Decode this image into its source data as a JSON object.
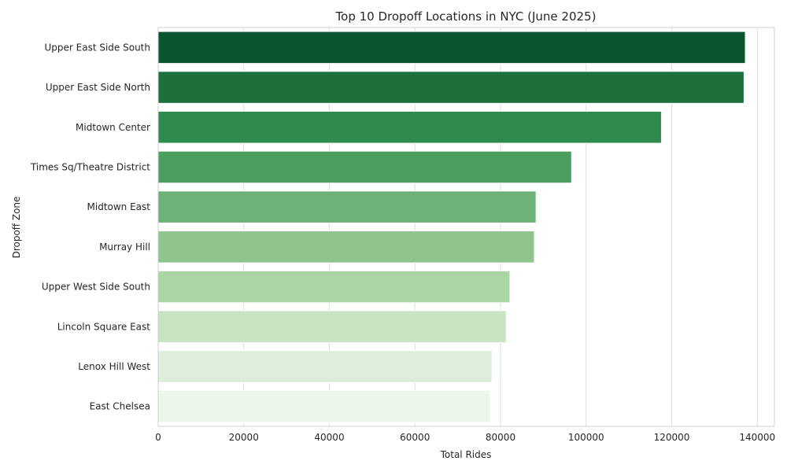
{
  "chart_data": {
    "type": "bar",
    "orientation": "horizontal",
    "title": "Top 10 Dropoff Locations in NYC (June 2025)",
    "xlabel": "Total Rides",
    "ylabel": "Dropoff Zone",
    "xlim": [
      0,
      144000
    ],
    "xticks": [
      0,
      20000,
      40000,
      60000,
      80000,
      100000,
      120000,
      140000
    ],
    "grid": true,
    "categories": [
      "Upper East Side South",
      "Upper East Side North",
      "Midtown Center",
      "Times Sq/Theatre District",
      "Midtown East",
      "Murray Hill",
      "Upper West Side South",
      "Lincoln Square East",
      "Lenox Hill West",
      "East Chelsea"
    ],
    "values": [
      137200,
      136900,
      117600,
      96600,
      88300,
      87900,
      82200,
      81300,
      78000,
      77600
    ],
    "colors": [
      "#0b5430",
      "#1c703b",
      "#2e8a4e",
      "#4a9e5f",
      "#6db176",
      "#8fc58c",
      "#abd5a5",
      "#c7e3c0",
      "#dceeda",
      "#ecf6ea"
    ]
  }
}
